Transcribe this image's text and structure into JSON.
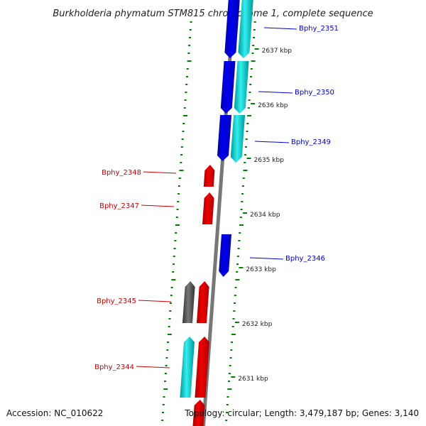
{
  "title": "Burkholderia phymatum STM815 chromosome 1, complete sequence",
  "footer": {
    "accession": "Accession: NC_010622",
    "topology": "Topology: circular; Length: 3,479,187 bp; Genes: 3,140"
  },
  "colors": {
    "backbone": "#777777",
    "tick": "#008000",
    "gene_blue": "#0000ee",
    "gene_cyan": "#00cccc",
    "gene_red": "#ee0000",
    "gene_gray": "#555555",
    "label_blue": "#0000cc",
    "label_red": "#cc0000"
  },
  "kbp_labels": [
    "2637 kbp",
    "2636 kbp",
    "2635 kbp",
    "2634 kbp",
    "2633 kbp",
    "2632 kbp",
    "2631 kbp"
  ],
  "genes": [
    {
      "id": "Bphy_2351",
      "label": "Bphy_2351",
      "strand": "forward",
      "color": "blue",
      "side": "right"
    },
    {
      "id": "Bphy_2350",
      "label": "Bphy_2350",
      "strand": "forward",
      "color": "blue",
      "side": "right"
    },
    {
      "id": "Bphy_2349",
      "label": "Bphy_2349",
      "strand": "forward",
      "color": "blue",
      "side": "right"
    },
    {
      "id": "Bphy_2348",
      "label": "Bphy_2348",
      "strand": "reverse",
      "color": "red",
      "side": "left"
    },
    {
      "id": "Bphy_2347",
      "label": "Bphy_2347",
      "strand": "reverse",
      "color": "red",
      "side": "left"
    },
    {
      "id": "Bphy_2346",
      "label": "Bphy_2346",
      "strand": "forward",
      "color": "blue",
      "side": "right"
    },
    {
      "id": "Bphy_2345",
      "label": "Bphy_2345",
      "strand": "reverse",
      "color": "red",
      "side": "left"
    },
    {
      "id": "Bphy_2344",
      "label": "Bphy_2344",
      "strand": "reverse",
      "color": "red",
      "side": "left"
    }
  ]
}
